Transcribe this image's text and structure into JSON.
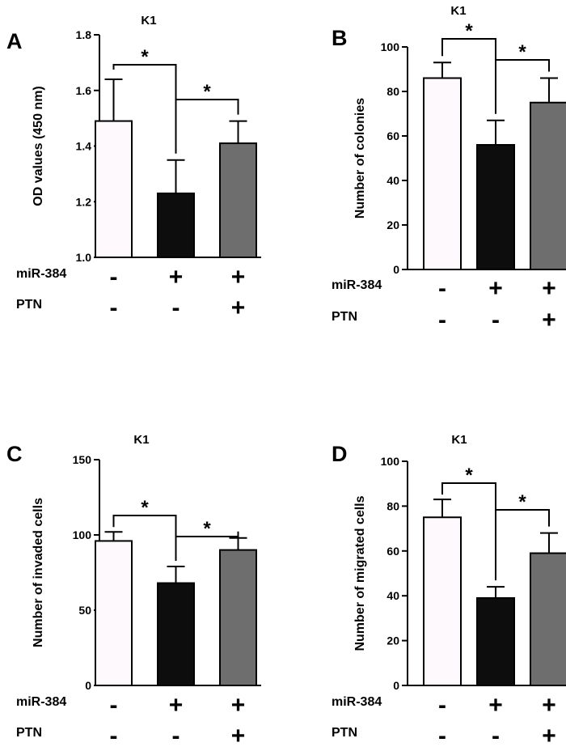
{
  "chart_data": [
    {
      "panel": "A",
      "type": "bar",
      "title": "K1",
      "ylabel": "OD values (450 nm)",
      "xlabel": "",
      "ylim": [
        1.0,
        1.8
      ],
      "yticks": [
        "1.0",
        "1.2",
        "1.4",
        "1.6",
        "1.8"
      ],
      "ytick_values": [
        1.0,
        1.2,
        1.4,
        1.6,
        1.8
      ],
      "values": [
        1.49,
        1.23,
        1.41
      ],
      "errors": [
        0.15,
        0.12,
        0.08
      ],
      "colors": [
        "#fdf9fc",
        "#0d0d0d",
        "#6e6e6e"
      ],
      "significance": [
        "*",
        "*"
      ],
      "rows": [
        {
          "label": "miR-384",
          "signs": [
            "-",
            "+",
            "+"
          ]
        },
        {
          "label": "PTN",
          "signs": [
            "-",
            "-",
            "+"
          ]
        }
      ]
    },
    {
      "panel": "B",
      "type": "bar",
      "title": "K1",
      "ylabel": "Number of colonies",
      "xlabel": "",
      "ylim": [
        0,
        100
      ],
      "yticks": [
        "0",
        "20",
        "40",
        "60",
        "80",
        "100"
      ],
      "ytick_values": [
        0,
        20,
        40,
        60,
        80,
        100
      ],
      "values": [
        86,
        56,
        75
      ],
      "errors": [
        7,
        11,
        11
      ],
      "colors": [
        "#fdf9fc",
        "#0d0d0d",
        "#6e6e6e"
      ],
      "significance": [
        "*",
        "*"
      ],
      "rows": [
        {
          "label": "miR-384",
          "signs": [
            "-",
            "+",
            "+"
          ]
        },
        {
          "label": "PTN",
          "signs": [
            "-",
            "-",
            "+"
          ]
        }
      ]
    },
    {
      "panel": "C",
      "type": "bar",
      "title": "K1",
      "ylabel": "Number of invaded cells",
      "xlabel": "",
      "ylim": [
        0,
        150
      ],
      "yticks": [
        "0",
        "50",
        "100",
        "150"
      ],
      "ytick_values": [
        0,
        50,
        100,
        150
      ],
      "values": [
        96,
        68,
        90
      ],
      "errors": [
        6,
        11,
        8
      ],
      "colors": [
        "#fdf9fc",
        "#0d0d0d",
        "#6e6e6e"
      ],
      "significance": [
        "*",
        "*"
      ],
      "rows": [
        {
          "label": "miR-384",
          "signs": [
            "-",
            "+",
            "+"
          ]
        },
        {
          "label": "PTN",
          "signs": [
            "-",
            "-",
            "+"
          ]
        }
      ]
    },
    {
      "panel": "D",
      "type": "bar",
      "title": "K1",
      "ylabel": "Number of migrated cells",
      "xlabel": "",
      "ylim": [
        0,
        100
      ],
      "yticks": [
        "0",
        "20",
        "40",
        "60",
        "80",
        "100"
      ],
      "ytick_values": [
        0,
        20,
        40,
        60,
        80,
        100
      ],
      "values": [
        75,
        39,
        59
      ],
      "errors": [
        8,
        5,
        9
      ],
      "colors": [
        "#fdf9fc",
        "#0d0d0d",
        "#6e6e6e"
      ],
      "significance": [
        "*",
        "*"
      ],
      "rows": [
        {
          "label": "miR-384",
          "signs": [
            "-",
            "+",
            "+"
          ]
        },
        {
          "label": "PTN",
          "signs": [
            "-",
            "-",
            "+"
          ]
        }
      ]
    }
  ]
}
